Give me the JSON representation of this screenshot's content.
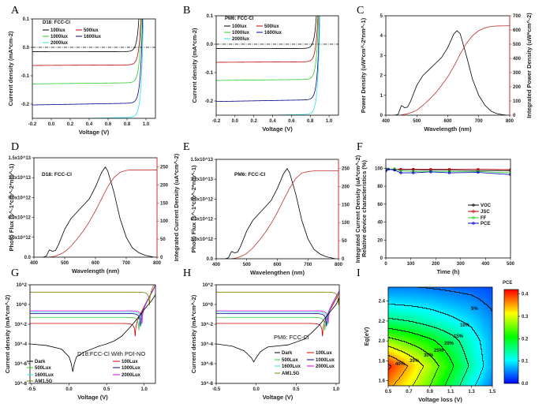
{
  "chart_data": [
    {
      "panel": "A",
      "type": "line",
      "annotation": "D18: FCC-Cl",
      "xlabel": "Voltage (V)",
      "ylabel": "Current density (mA*cm-2)",
      "xlim": [
        -0.2,
        1.1
      ],
      "ylim": [
        -0.25,
        0.1
      ],
      "xticks": [
        "-0.2",
        "0.0",
        "0.2",
        "0.4",
        "0.6",
        "0.8",
        "1.0"
      ],
      "yticks": [
        "-0.2",
        "-0.1",
        "0.0",
        "0.1"
      ],
      "reference_line": {
        "y": 0,
        "style": "dash-dot"
      },
      "series": [
        {
          "name": "100lux",
          "color": "#000000",
          "jsc": 0.015,
          "voc": 0.88
        },
        {
          "name": "500lux",
          "color": "#c00000",
          "jsc": 0.062,
          "voc": 0.925
        },
        {
          "name": "1000lux",
          "color": "#2ecc2e",
          "jsc": 0.125,
          "voc": 0.94
        },
        {
          "name": "1600lux",
          "color": "#00008b",
          "jsc": 0.197,
          "voc": 0.955
        },
        {
          "name": "2000lux",
          "color": "#33e0e0",
          "jsc": 0.247,
          "voc": 0.965
        }
      ]
    },
    {
      "panel": "B",
      "type": "line",
      "annotation": "PM6: FCC-Cl",
      "xlabel": "Voltage (V)",
      "ylabel": "Current density (mA*cm-2)",
      "xlim": [
        -0.2,
        1.1
      ],
      "ylim": [
        -0.25,
        0.1
      ],
      "xticks": [
        "-0.2",
        "0.0",
        "0.2",
        "0.4",
        "0.6",
        "0.8",
        "1.0"
      ],
      "yticks": [
        "-0.2",
        "-0.1",
        "0.0",
        "0.1"
      ],
      "reference_line": {
        "y": 0,
        "style": "dash-dot"
      },
      "series": [
        {
          "name": "100lux",
          "color": "#000000",
          "jsc": 0.015,
          "voc": 0.82
        },
        {
          "name": "500lux",
          "color": "#c00000",
          "jsc": 0.062,
          "voc": 0.86
        },
        {
          "name": "1000lux",
          "color": "#2ecc2e",
          "jsc": 0.124,
          "voc": 0.875
        },
        {
          "name": "1600lux",
          "color": "#00008b",
          "jsc": 0.196,
          "voc": 0.89
        },
        {
          "name": "2000lux",
          "color": "#33e0e0",
          "jsc": 0.247,
          "voc": 0.895
        }
      ]
    },
    {
      "panel": "C",
      "type": "line",
      "xlabel": "Wavelength (nm)",
      "ylabel": "Power Density (uW*cm^-2*nm^-1)",
      "y2label": "Integrated Power Density (uW*cm^-2)",
      "xlim": [
        400,
        800
      ],
      "ylim": [
        0,
        5
      ],
      "y2lim": [
        0,
        700
      ],
      "xticks": [
        "400",
        "500",
        "600",
        "700",
        "800"
      ],
      "yticks": [
        "0",
        "1",
        "2",
        "3",
        "4",
        "5"
      ],
      "y2ticks": [
        "0",
        "100",
        "200",
        "300",
        "400",
        "500",
        "600",
        "700"
      ],
      "y2color": "#d03030",
      "series": [
        {
          "axis": "left",
          "color": "#000000",
          "x": [
            430,
            440,
            450,
            455,
            460,
            470,
            480,
            500,
            520,
            540,
            560,
            580,
            600,
            620,
            630,
            640,
            660,
            680,
            700,
            720,
            740,
            760,
            780,
            790
          ],
          "y": [
            0,
            0.05,
            0.48,
            0.45,
            0.38,
            0.4,
            0.7,
            1.5,
            2.0,
            2.3,
            2.6,
            2.9,
            3.4,
            4.1,
            4.25,
            4.1,
            3.0,
            1.8,
            1.0,
            0.5,
            0.2,
            0.07,
            0.02,
            0
          ]
        },
        {
          "axis": "right",
          "color": "#c03030",
          "x": [
            450,
            470,
            490,
            500,
            520,
            540,
            560,
            580,
            600,
            620,
            640,
            660,
            680,
            700,
            720,
            740,
            760,
            800
          ],
          "y": [
            2,
            10,
            25,
            35,
            70,
            110,
            155,
            210,
            270,
            345,
            430,
            505,
            560,
            595,
            615,
            625,
            628,
            630
          ]
        }
      ]
    },
    {
      "panel": "D",
      "type": "line",
      "annotation": "D18: FCC-Cl",
      "xlabel": "Wavelength (nm)",
      "ylabel": "Photo Flux (s^-1*cm^-2*nm^-1)",
      "y2label": "Integrated Current Density (uA*cm^-2)",
      "xlim": [
        400,
        800
      ],
      "ylim": [
        0,
        15000000000000.0
      ],
      "y2lim": [
        0,
        275
      ],
      "xticks": [
        "400",
        "500",
        "600",
        "700",
        "800"
      ],
      "yticks": [
        "0.0",
        "3.0x10^12",
        "6.0x10^12",
        "9.0x10^12",
        "1.2x10^13",
        "1.5x10^13"
      ],
      "y2ticks": [
        "0",
        "50",
        "100",
        "150",
        "200",
        "250"
      ],
      "y2color": "#d03030",
      "series": [
        {
          "axis": "left",
          "color": "#000000",
          "x": [
            430,
            440,
            450,
            455,
            460,
            470,
            480,
            500,
            520,
            540,
            560,
            580,
            600,
            620,
            632,
            640,
            660,
            680,
            700,
            720,
            740,
            760,
            780,
            790
          ],
          "y": [
            0,
            150000000000.0,
            1100000000000.0,
            1000000000000.0,
            900000000000.0,
            1000000000000.0,
            1900000000000.0,
            4200000000000.0,
            5800000000000.0,
            6800000000000.0,
            7800000000000.0,
            8800000000000.0,
            10600000000000.0,
            12800000000000.0,
            13600000000000.0,
            13000000000000.0,
            9800000000000.0,
            5800000000000.0,
            3000000000000.0,
            1400000000000.0,
            700000000000.0,
            300000000000.0,
            100000000000.0,
            0
          ]
        },
        {
          "axis": "right",
          "color": "#c03030",
          "x": [
            450,
            470,
            490,
            500,
            520,
            540,
            560,
            580,
            600,
            620,
            640,
            660,
            680,
            700,
            710,
            720,
            800
          ],
          "y": [
            0,
            3,
            10,
            15,
            30,
            50,
            72,
            98,
            128,
            162,
            195,
            220,
            235,
            240,
            241,
            241,
            241
          ]
        }
      ]
    },
    {
      "panel": "E",
      "type": "line",
      "annotation": "PM6: FCC-Cl",
      "xlabel": "Wavelengthen (nm)",
      "ylabel": "Photo Flux (s^-1*cm^-2*nm^-1)",
      "y2label": "Integrated Current Density (uA*cm^-2)",
      "xlim": [
        400,
        800
      ],
      "ylim": [
        0,
        15000000000000.0
      ],
      "y2lim": [
        0,
        275
      ],
      "xticks": [
        "400",
        "500",
        "600",
        "700",
        "800"
      ],
      "yticks": [
        "0.0",
        "3.0x10^12",
        "6.0x10^12",
        "9.0x10^12",
        "1.2x10^13",
        "1.5x10^13"
      ],
      "y2ticks": [
        "0",
        "50",
        "100",
        "150",
        "200",
        "250"
      ],
      "y2color": "#d03030",
      "series": [
        {
          "axis": "left",
          "color": "#000000",
          "x": [
            430,
            440,
            450,
            455,
            460,
            470,
            480,
            500,
            520,
            540,
            560,
            580,
            600,
            620,
            632,
            640,
            660,
            680,
            700,
            720,
            740,
            760,
            780,
            790
          ],
          "y": [
            0,
            150000000000.0,
            1100000000000.0,
            1000000000000.0,
            900000000000.0,
            1000000000000.0,
            1900000000000.0,
            4200000000000.0,
            5800000000000.0,
            6800000000000.0,
            7800000000000.0,
            8800000000000.0,
            10600000000000.0,
            12800000000000.0,
            13600000000000.0,
            13000000000000.0,
            9800000000000.0,
            5800000000000.0,
            3000000000000.0,
            1400000000000.0,
            700000000000.0,
            300000000000.0,
            100000000000.0,
            0
          ]
        },
        {
          "axis": "right",
          "color": "#c03030",
          "x": [
            450,
            470,
            490,
            500,
            520,
            540,
            560,
            580,
            600,
            620,
            640,
            660,
            680,
            700,
            720,
            740,
            800
          ],
          "y": [
            0,
            3,
            10,
            15,
            30,
            50,
            72,
            98,
            128,
            162,
            195,
            222,
            237,
            241,
            243,
            243,
            243
          ]
        }
      ]
    },
    {
      "panel": "F",
      "type": "line",
      "xlabel": "Time (h)",
      "ylabel": "Relative device characteristics (%)",
      "xlim": [
        0,
        500
      ],
      "ylim": [
        0,
        110
      ],
      "xticks": [
        "0",
        "100",
        "200",
        "300",
        "400",
        "500"
      ],
      "yticks": [
        "0",
        "20",
        "40",
        "60",
        "80",
        "100"
      ],
      "legend_position": "center-right",
      "x": [
        0,
        10,
        35,
        60,
        110,
        180,
        255,
        370,
        500
      ],
      "series": [
        {
          "name": "VOC",
          "color": "#000000",
          "y": [
            98,
            99,
            98.5,
            98.5,
            98.5,
            98,
            98,
            97.5,
            97.5
          ]
        },
        {
          "name": "JSC",
          "color": "#c00000",
          "y": [
            99,
            99,
            99,
            99,
            99,
            99,
            99,
            99,
            98.5
          ]
        },
        {
          "name": "FF",
          "color": "#2ecc2e",
          "y": [
            100,
            99,
            99.5,
            97,
            96.5,
            96.5,
            96.5,
            96.5,
            95
          ]
        },
        {
          "name": "PCE",
          "color": "#0000c0",
          "y": [
            97,
            99,
            98,
            95,
            95,
            96,
            95,
            95.5,
            93
          ]
        }
      ]
    },
    {
      "panel": "G",
      "type": "line",
      "yscale": "log",
      "legend_title": "D18:FCC-Cl With PDI-NO",
      "xlabel": "Voltage (V)",
      "ylabel": "Current density (mA*cm^-2)",
      "xlim": [
        -0.52,
        1.15
      ],
      "ylim": [
        1e-08,
        100
      ],
      "xticks": [
        "-0.5",
        "0.0",
        "0.5",
        "1.0"
      ],
      "yticks": [
        "10^-8",
        "10^-6",
        "10^-4",
        "10^-2",
        "10^0",
        "10^2"
      ],
      "dark": {
        "name": "Dark",
        "color": "#000000",
        "x": [
          -0.52,
          -0.3,
          -0.1,
          0.0,
          0.03,
          0.05,
          0.07,
          0.1,
          0.2,
          0.4,
          0.5,
          0.6,
          0.7,
          0.8,
          0.9,
          1.0,
          1.1,
          1.15
        ],
        "y": [
          0.0001,
          7e-05,
          3e-05,
          5e-06,
          1e-06,
          1.5e-07,
          1e-06,
          5e-06,
          1.5e-05,
          6e-05,
          0.0001,
          0.0002,
          0.0006,
          0.004,
          0.03,
          0.3,
          2.5,
          10
        ]
      },
      "series": [
        {
          "name": "100Lux",
          "color": "#d00000",
          "jsc": 0.012,
          "voc": 0.88
        },
        {
          "name": "500Lux",
          "color": "#2ecc2e",
          "jsc": 0.05,
          "voc": 0.93
        },
        {
          "name": "1000Lux",
          "color": "#00008b",
          "jsc": 0.12,
          "voc": 0.95
        },
        {
          "name": "1600Lux",
          "color": "#33e0e0",
          "jsc": 0.17,
          "voc": 0.96
        },
        {
          "name": "2000Lux",
          "color": "#e000e0",
          "jsc": 0.23,
          "voc": 0.97
        },
        {
          "name": "AM1.5G",
          "color": "#808000",
          "jsc": 18,
          "voc": 1.07
        }
      ]
    },
    {
      "panel": "H",
      "type": "line",
      "yscale": "log",
      "legend_title": "PM6: FCC-Cl",
      "xlabel": "Voltage (V)",
      "ylabel": "Current density (mA*cm^-2)",
      "xlim": [
        -0.5,
        1.04
      ],
      "ylim": [
        1e-08,
        100
      ],
      "xticks": [
        "-0.5",
        "0.0",
        "0.5",
        "1.0"
      ],
      "yticks": [
        "10^-8",
        "10^-6",
        "10^-4",
        "10^-2",
        "10^0",
        "10^2"
      ],
      "dark": {
        "name": "Dark",
        "color": "#000000",
        "x": [
          -0.5,
          -0.3,
          -0.15,
          -0.06,
          -0.03,
          0.0,
          0.05,
          0.1,
          0.15,
          0.4,
          0.6,
          0.7,
          0.8,
          0.9,
          1.0,
          1.04
        ],
        "y": [
          0.0001,
          6e-05,
          2e-05,
          4e-06,
          1.5e-06,
          4e-06,
          1.5e-05,
          3e-05,
          5e-05,
          8e-05,
          0.0003,
          0.0015,
          0.01,
          0.1,
          1.0,
          5
        ]
      },
      "series": [
        {
          "name": "100Lux",
          "color": "#d00000",
          "jsc": 0.012,
          "voc": 0.83
        },
        {
          "name": "500Lux",
          "color": "#2ecc2e",
          "jsc": 0.05,
          "voc": 0.86
        },
        {
          "name": "1000Lux",
          "color": "#00008b",
          "jsc": 0.12,
          "voc": 0.88
        },
        {
          "name": "1600Lux",
          "color": "#33e0e0",
          "jsc": 0.17,
          "voc": 0.89
        },
        {
          "name": "2000Lux",
          "color": "#e000e0",
          "jsc": 0.23,
          "voc": 0.9
        },
        {
          "name": "AM1.5G",
          "color": "#808000",
          "jsc": 18,
          "voc": 1.03
        }
      ]
    },
    {
      "panel": "I",
      "type": "heatmap",
      "xlabel": "Voltage loss (V)",
      "ylabel": "Eg(eV)",
      "xlim": [
        0.5,
        1.5
      ],
      "ylim": [
        1.55,
        2.54
      ],
      "xticks": [
        "0.5",
        "0.7",
        "0.9",
        "1.1",
        "1.3",
        "1.5"
      ],
      "yticks": [
        "1.6",
        "1.8",
        "2.0",
        "2.2",
        "2.4"
      ],
      "colorbar_label": "PCE",
      "zlim": [
        0,
        0.42
      ],
      "colorbar_ticks": [
        "0.0",
        "0.1",
        "0.2",
        "0.3",
        "0.4"
      ],
      "colormap": [
        "#0000ff",
        "#00ffff",
        "#00ff00",
        "#ffff00",
        "#ff0000"
      ],
      "grid_x": [
        0.5,
        0.7,
        0.9,
        1.1,
        1.3,
        1.5
      ],
      "grid_y": [
        1.55,
        1.75,
        2.0,
        2.2,
        2.4,
        2.55
      ],
      "z": [
        [
          0.36,
          0.31,
          0.25,
          0.18,
          0.11,
          0.05
        ],
        [
          0.41,
          0.345,
          0.28,
          0.21,
          0.14,
          0.07
        ],
        [
          0.27,
          0.24,
          0.21,
          0.17,
          0.12,
          0.07
        ],
        [
          0.16,
          0.15,
          0.13,
          0.11,
          0.09,
          0.06
        ],
        [
          0.09,
          0.085,
          0.08,
          0.07,
          0.06,
          0.04
        ],
        [
          0.05,
          0.05,
          0.045,
          0.04,
          0.035,
          0.03
        ]
      ],
      "contour_levels": [
        0.05,
        0.1,
        0.15,
        0.2,
        0.25,
        0.3,
        0.35,
        0.4
      ],
      "contour_labels": [
        "5%",
        "10%",
        "15%",
        "20%",
        "25%",
        "30%",
        "35%",
        "40%"
      ]
    }
  ]
}
